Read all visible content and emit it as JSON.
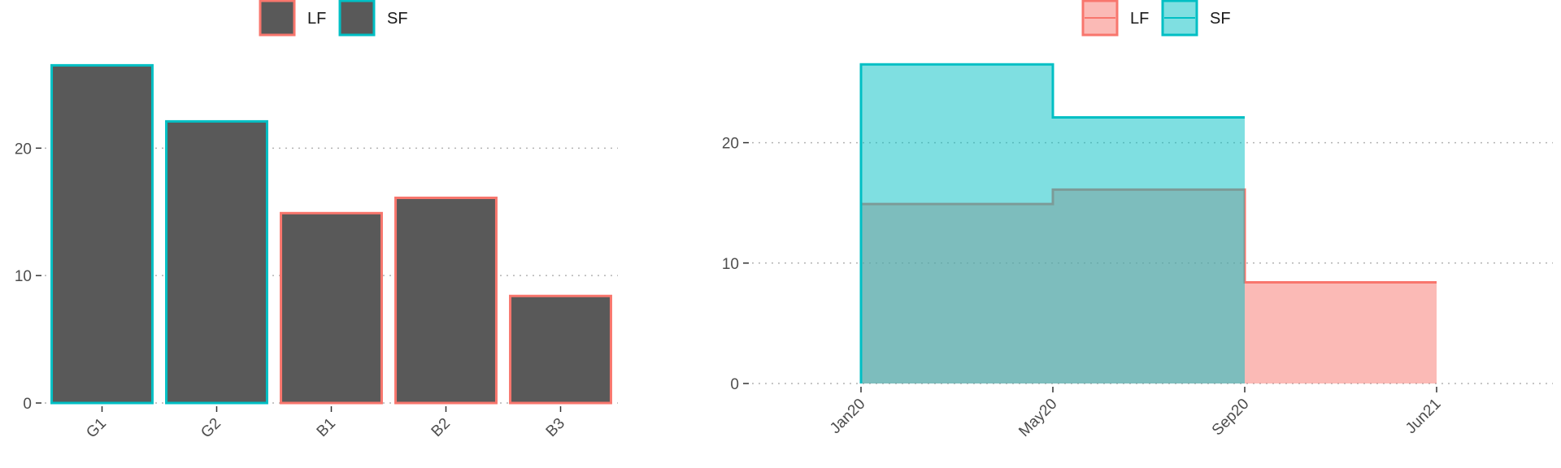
{
  "colors": {
    "LF": "#F8766D",
    "SF": "#00BFC4",
    "bar_fill": "#595959",
    "LF_area": "#F8766D",
    "SF_area": "#00BFC4"
  },
  "chart_data": [
    {
      "type": "bar",
      "categories": [
        "G1",
        "G2",
        "B1",
        "B2",
        "B3"
      ],
      "values": [
        26.5,
        22.1,
        14.9,
        16.1,
        8.4
      ],
      "groups": [
        "SF",
        "SF",
        "LF",
        "LF",
        "LF"
      ],
      "legend": [
        "LF",
        "SF"
      ],
      "legend_position": "top",
      "xlabel": "",
      "ylabel": "",
      "yticks": [
        0,
        10,
        20
      ],
      "ylim": [
        0,
        27.8
      ],
      "grid": "horizontal dotted"
    },
    {
      "type": "area",
      "step": true,
      "x_ticks": [
        "Jan20",
        "May20",
        "Sep20",
        "Jun21"
      ],
      "series": [
        {
          "name": "LF",
          "x": [
            "Jan20",
            "May20",
            "Sep20",
            "Jun21"
          ],
          "values": [
            14.9,
            16.1,
            8.4,
            8.4
          ]
        },
        {
          "name": "SF",
          "x": [
            "Jan20",
            "May20",
            "Sep20"
          ],
          "values": [
            26.5,
            22.1,
            22.1
          ]
        }
      ],
      "legend": [
        "LF",
        "SF"
      ],
      "legend_position": "top",
      "xlabel": "",
      "ylabel": "",
      "yticks": [
        0,
        10,
        20
      ],
      "ylim": [
        0,
        27.8
      ],
      "grid": "horizontal dotted"
    }
  ]
}
